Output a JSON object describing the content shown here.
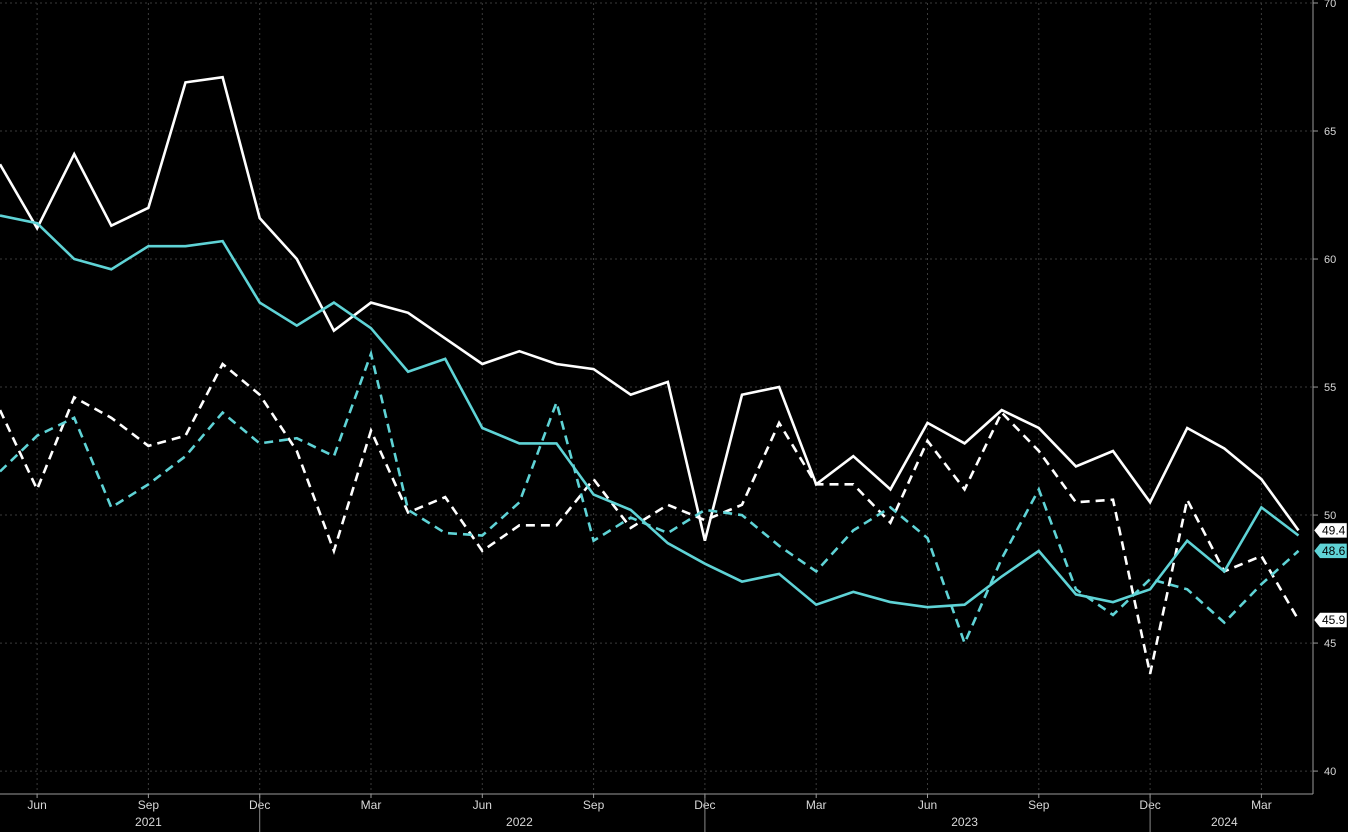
{
  "chart_data": {
    "type": "line",
    "x": [
      "2021-05",
      "2021-06",
      "2021-07",
      "2021-08",
      "2021-09",
      "2021-10",
      "2021-11",
      "2021-12",
      "2022-01",
      "2022-02",
      "2022-03",
      "2022-04",
      "2022-05",
      "2022-06",
      "2022-07",
      "2022-08",
      "2022-09",
      "2022-10",
      "2022-11",
      "2022-12",
      "2023-01",
      "2023-02",
      "2023-03",
      "2023-04",
      "2023-05",
      "2023-06",
      "2023-07",
      "2023-08",
      "2023-09",
      "2023-10",
      "2023-11",
      "2023-12",
      "2024-01",
      "2024-02",
      "2024-03",
      "2024-04"
    ],
    "series": [
      {
        "style": "solid",
        "color": "#ffffff",
        "values": [
          63.7,
          61.2,
          64.1,
          61.3,
          62.0,
          66.9,
          67.1,
          61.6,
          60.0,
          57.2,
          58.3,
          57.9,
          56.9,
          55.9,
          56.4,
          55.9,
          55.7,
          54.7,
          55.2,
          49.0,
          54.7,
          55.0,
          51.2,
          52.3,
          51.0,
          53.6,
          52.8,
          54.1,
          53.4,
          51.9,
          52.5,
          50.5,
          53.4,
          52.6,
          51.4,
          49.4
        ]
      },
      {
        "style": "dashed",
        "color": "#ffffff",
        "values": [
          54.1,
          51.0,
          54.6,
          53.8,
          52.7,
          53.1,
          55.9,
          54.7,
          52.5,
          48.6,
          53.3,
          50.1,
          50.7,
          48.6,
          49.6,
          49.6,
          51.4,
          49.5,
          50.4,
          49.8,
          50.4,
          53.6,
          51.2,
          51.2,
          49.7,
          52.9,
          51.0,
          54.0,
          52.5,
          50.5,
          50.6,
          43.8,
          50.6,
          47.8,
          48.4,
          45.9
        ]
      },
      {
        "style": "solid",
        "color": "#5fd3d6",
        "values": [
          61.7,
          61.4,
          60.0,
          59.6,
          60.5,
          60.5,
          60.7,
          58.3,
          57.4,
          58.3,
          57.3,
          55.6,
          56.1,
          53.4,
          52.8,
          52.8,
          50.8,
          50.2,
          48.9,
          48.1,
          47.4,
          47.7,
          46.5,
          47.0,
          46.6,
          46.4,
          46.5,
          47.6,
          48.6,
          46.9,
          46.6,
          47.1,
          49.0,
          47.8,
          50.3,
          49.2
        ]
      },
      {
        "style": "dashed",
        "color": "#5fd3d6",
        "values": [
          51.7,
          53.1,
          53.8,
          50.3,
          51.2,
          52.3,
          54.0,
          52.8,
          53.0,
          52.3,
          56.3,
          50.2,
          49.3,
          49.2,
          50.5,
          54.4,
          49.0,
          49.9,
          49.3,
          50.2,
          50.0,
          48.8,
          47.8,
          49.4,
          50.3,
          49.1,
          45.0,
          48.3,
          51.0,
          47.1,
          46.1,
          47.5,
          47.1,
          45.8,
          47.3,
          48.6
        ]
      }
    ],
    "y_axis": {
      "position": "right",
      "ylim": [
        39.3,
        70.0
      ],
      "ticks": [
        40,
        45,
        50,
        55,
        60,
        65,
        70
      ],
      "tick_labels": [
        "40",
        "45",
        "50",
        "55",
        "60",
        "65",
        "70"
      ]
    },
    "x_axis": {
      "month_ticks": [
        {
          "label": "Jun",
          "x": "2021-06"
        },
        {
          "label": "Sep",
          "x": "2021-09"
        },
        {
          "label": "Dec",
          "x": "2021-12"
        },
        {
          "label": "Mar",
          "x": "2022-03"
        },
        {
          "label": "Jun",
          "x": "2022-06"
        },
        {
          "label": "Sep",
          "x": "2022-09"
        },
        {
          "label": "Dec",
          "x": "2022-12"
        },
        {
          "label": "Mar",
          "x": "2023-03"
        },
        {
          "label": "Jun",
          "x": "2023-06"
        },
        {
          "label": "Sep",
          "x": "2023-09"
        },
        {
          "label": "Dec",
          "x": "2023-12"
        },
        {
          "label": "Mar",
          "x": "2024-03"
        }
      ],
      "years": [
        {
          "label": "2021",
          "x": "2021-09"
        },
        {
          "label": "2022",
          "x": "2022-07"
        },
        {
          "label": "2023",
          "x": "2023-07"
        },
        {
          "label": "2024",
          "x": "2024-02"
        }
      ],
      "year_separators": [
        "2021-12",
        "2022-12",
        "2023-12"
      ]
    },
    "last_value_tags": [
      {
        "text": "49.4",
        "value": 49.4,
        "bg": "#ffffff",
        "fg": "#000000"
      },
      {
        "text": "48.6",
        "value": 48.6,
        "bg": "#5fd3d6",
        "fg": "#000000"
      },
      {
        "text": "45.9",
        "value": 45.9,
        "bg": "#ffffff",
        "fg": "#000000"
      }
    ],
    "grid": true,
    "legend": "none"
  }
}
